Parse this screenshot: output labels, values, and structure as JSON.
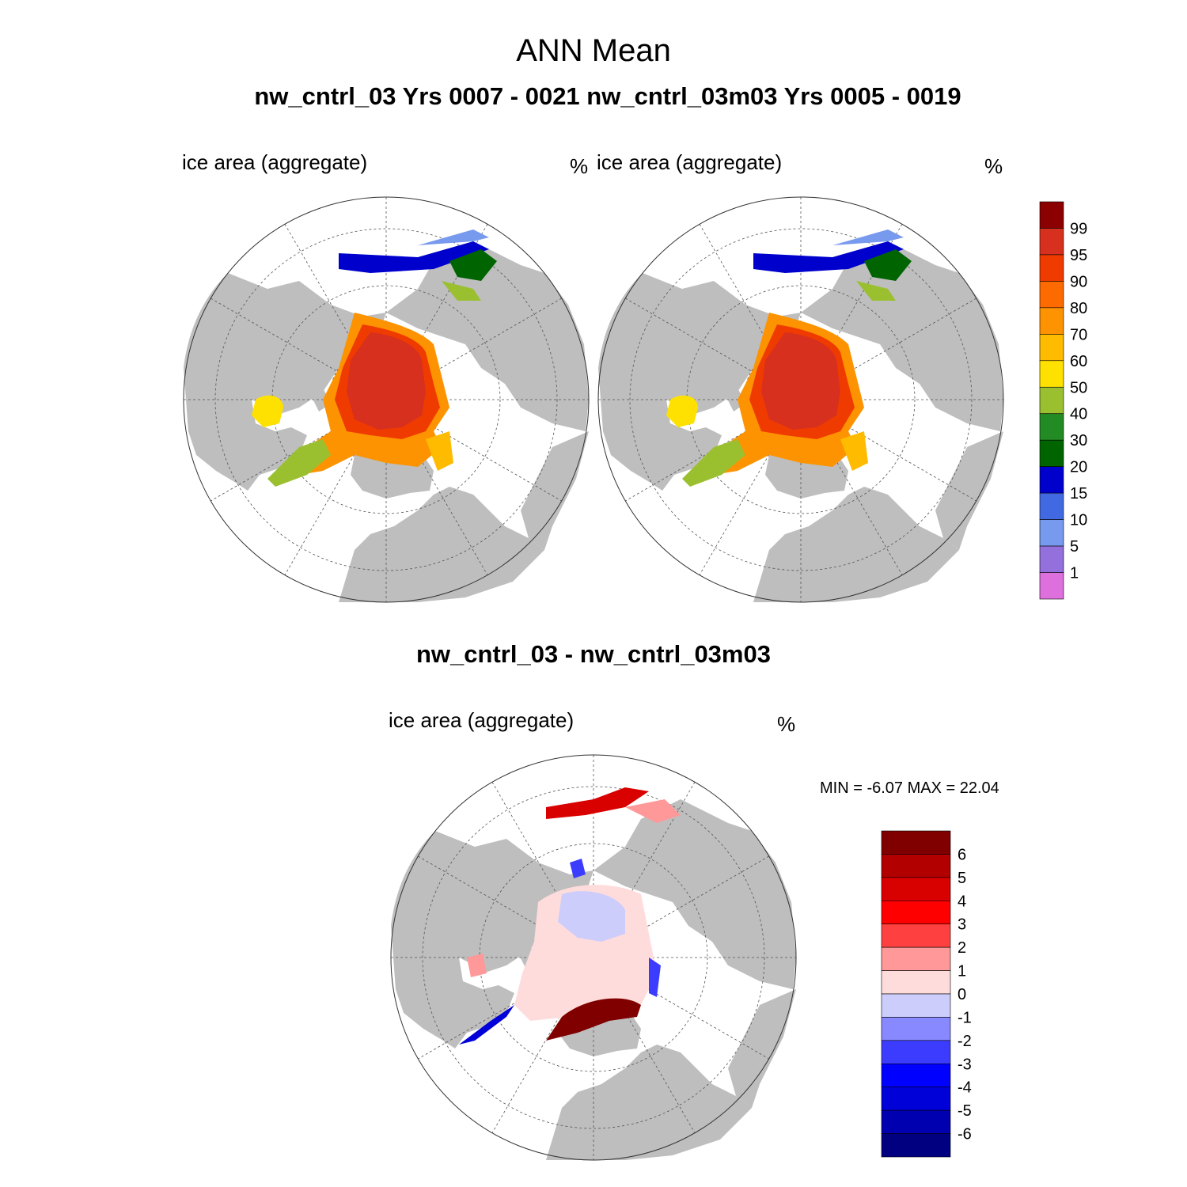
{
  "title": "ANN Mean",
  "subtitle": "nw_cntrl_03  Yrs 0007 - 0021   nw_cntrl_03m03  Yrs 0005 - 0019",
  "panels": [
    {
      "label": "ice area  (aggregate)",
      "units": "%"
    },
    {
      "label": "ice area  (aggregate)",
      "units": "%"
    }
  ],
  "diff_panel": {
    "title": "nw_cntrl_03 - nw_cntrl_03m03",
    "label": "ice area  (aggregate)",
    "units": "%",
    "minmax": "MIN =  -6.07 MAX =  22.04"
  },
  "colorbar_main": {
    "labels": [
      "99",
      "95",
      "90",
      "80",
      "70",
      "60",
      "50",
      "40",
      "30",
      "20",
      "15",
      "10",
      "5",
      "1"
    ],
    "colors": [
      "#8b0000",
      "#d7301f",
      "#f03b00",
      "#fd6a00",
      "#fd9300",
      "#febb00",
      "#fee100",
      "#9ac030",
      "#238b23",
      "#006400",
      "#0000cd",
      "#4169e1",
      "#7799ee",
      "#9370db",
      "#dd70dd"
    ]
  },
  "colorbar_diff": {
    "labels": [
      "6",
      "5",
      "4",
      "3",
      "2",
      "1",
      "0",
      "-1",
      "-2",
      "-3",
      "-4",
      "-5",
      "-6"
    ],
    "colors": [
      "#800000",
      "#b20000",
      "#d90000",
      "#ff0000",
      "#ff4040",
      "#ff9898",
      "#ffdcdc",
      "#cccdfb",
      "#8888ff",
      "#3c3cff",
      "#0000ff",
      "#0000d8",
      "#0000b0",
      "#000080"
    ]
  },
  "colors": {
    "land": "#bebebe",
    "ocean": "#ffffff"
  }
}
